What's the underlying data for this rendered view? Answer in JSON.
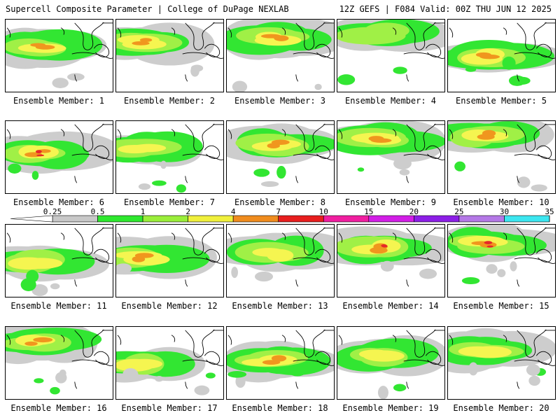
{
  "header": {
    "title_left": "Supercell Composite Parameter | College of DuPage NEXLAB",
    "title_right": "12Z GEFS | F084 Valid: 00Z THU JUN 12 2025"
  },
  "colorbar": {
    "ticks": [
      "0.25",
      "0.5",
      "1",
      "2",
      "4",
      "7",
      "10",
      "15",
      "20",
      "25",
      "30",
      "35"
    ],
    "colors": [
      "#c8c8c8",
      "#2ee82e",
      "#9aee3a",
      "#f0f03c",
      "#f08c1e",
      "#e81e1e",
      "#f01ea0",
      "#d21ee6",
      "#8c1ee6",
      "#b478e6",
      "#3ce6f0"
    ]
  },
  "field_colors": {
    "gray": "#cdcdcd",
    "green": "#32e632",
    "lime": "#a0f046",
    "yellow": "#f5f550",
    "orange": "#f0961e",
    "red": "#e62828"
  },
  "panels": [
    {
      "label": "Ensemble Member: 1",
      "intensity": 3
    },
    {
      "label": "Ensemble Member: 2",
      "intensity": 3
    },
    {
      "label": "Ensemble Member: 3",
      "intensity": 3
    },
    {
      "label": "Ensemble Member: 4",
      "intensity": 1
    },
    {
      "label": "Ensemble Member: 5",
      "intensity": 3
    },
    {
      "label": "Ensemble Member: 6",
      "intensity": 4
    },
    {
      "label": "Ensemble Member: 7",
      "intensity": 2
    },
    {
      "label": "Ensemble Member: 8",
      "intensity": 3
    },
    {
      "label": "Ensemble Member: 9",
      "intensity": 3
    },
    {
      "label": "Ensemble Member: 10",
      "intensity": 3
    },
    {
      "label": "Ensemble Member: 11",
      "intensity": 2
    },
    {
      "label": "Ensemble Member: 12",
      "intensity": 3
    },
    {
      "label": "Ensemble Member: 13",
      "intensity": 2
    },
    {
      "label": "Ensemble Member: 14",
      "intensity": 4
    },
    {
      "label": "Ensemble Member: 15",
      "intensity": 4
    },
    {
      "label": "Ensemble Member: 16",
      "intensity": 3
    },
    {
      "label": "Ensemble Member: 17",
      "intensity": 2
    },
    {
      "label": "Ensemble Member: 18",
      "intensity": 3
    },
    {
      "label": "Ensemble Member: 19",
      "intensity": 2
    },
    {
      "label": "Ensemble Member: 20",
      "intensity": 2
    }
  ]
}
